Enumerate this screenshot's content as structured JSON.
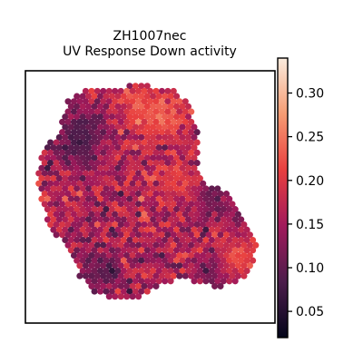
{
  "chart_data": {
    "type": "heatmap",
    "title_lines": [
      "ZH1007nec",
      "UV Response Down activity"
    ],
    "xlabel": "",
    "ylabel": "",
    "grid": false,
    "colormap": "rocket",
    "colorbar": {
      "range": [
        0.02,
        0.34
      ],
      "ticks": [
        0.05,
        0.1,
        0.15,
        0.2,
        0.25,
        0.3
      ],
      "tick_labels": [
        "0.05",
        "0.10",
        "0.15",
        "0.20",
        "0.25",
        "0.30"
      ]
    },
    "tissue_outline": [
      [
        0.09,
        0.3
      ],
      [
        0.14,
        0.22
      ],
      [
        0.17,
        0.12
      ],
      [
        0.22,
        0.08
      ],
      [
        0.3,
        0.07
      ],
      [
        0.4,
        0.06
      ],
      [
        0.5,
        0.06
      ],
      [
        0.6,
        0.08
      ],
      [
        0.66,
        0.14
      ],
      [
        0.69,
        0.24
      ],
      [
        0.7,
        0.33
      ],
      [
        0.69,
        0.4
      ],
      [
        0.72,
        0.45
      ],
      [
        0.78,
        0.46
      ],
      [
        0.83,
        0.5
      ],
      [
        0.87,
        0.58
      ],
      [
        0.91,
        0.63
      ],
      [
        0.93,
        0.7
      ],
      [
        0.91,
        0.79
      ],
      [
        0.85,
        0.84
      ],
      [
        0.77,
        0.86
      ],
      [
        0.7,
        0.84
      ],
      [
        0.63,
        0.83
      ],
      [
        0.55,
        0.84
      ],
      [
        0.49,
        0.88
      ],
      [
        0.44,
        0.91
      ],
      [
        0.37,
        0.91
      ],
      [
        0.28,
        0.88
      ],
      [
        0.22,
        0.82
      ],
      [
        0.18,
        0.73
      ],
      [
        0.13,
        0.66
      ],
      [
        0.09,
        0.6
      ],
      [
        0.06,
        0.52
      ],
      [
        0.05,
        0.42
      ],
      [
        0.06,
        0.34
      ]
    ],
    "spot_spacing": 0.0235,
    "value_distribution": {
      "mean": 0.16,
      "spread": 0.05
    },
    "low_activity_regions": [
      {
        "x": 0.2,
        "y": 0.3,
        "value": 0.05
      },
      {
        "x": 0.24,
        "y": 0.22,
        "value": 0.06
      },
      {
        "x": 0.3,
        "y": 0.8,
        "value": 0.05
      },
      {
        "x": 0.75,
        "y": 0.5,
        "value": 0.07
      },
      {
        "x": 0.78,
        "y": 0.8,
        "value": 0.06
      }
    ],
    "high_activity_regions": [
      {
        "x": 0.55,
        "y": 0.18,
        "value": 0.28
      },
      {
        "x": 0.45,
        "y": 0.12,
        "value": 0.26
      },
      {
        "x": 0.62,
        "y": 0.45,
        "value": 0.24
      },
      {
        "x": 0.85,
        "y": 0.75,
        "value": 0.27
      }
    ]
  }
}
